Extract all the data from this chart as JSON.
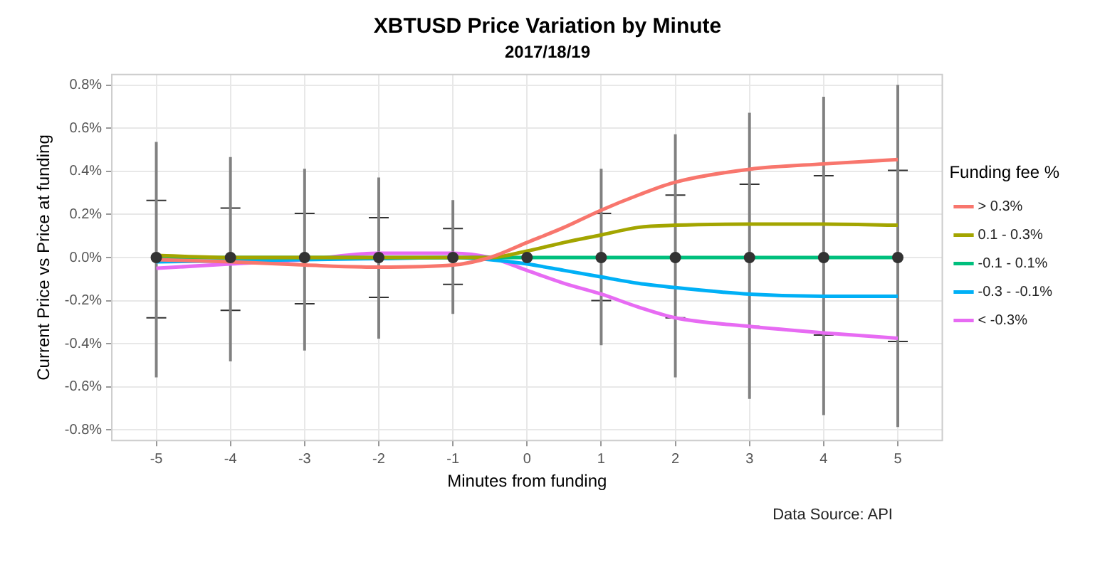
{
  "chart_data": {
    "type": "line",
    "title": "XBTUSD Price Variation by Minute",
    "subtitle": "2017/18/19",
    "xlabel": "Minutes from funding",
    "ylabel": "Current Price vs Price at funding",
    "legend_title": "Funding fee %",
    "annotations": [
      "Data Source: API"
    ],
    "x": [
      -5,
      -4,
      -3,
      -2,
      -1,
      -0.5,
      0,
      0.5,
      1,
      1.5,
      2,
      3,
      4,
      5
    ],
    "series": [
      {
        "name": "> 0.3%",
        "color": "#f8766d",
        "values": [
          -0.01,
          -0.02,
          -0.035,
          -0.045,
          -0.035,
          0.0,
          0.07,
          0.14,
          0.22,
          0.29,
          0.35,
          0.41,
          0.435,
          0.455
        ]
      },
      {
        "name": "0.1 - 0.3%",
        "color": "#a3a500",
        "values": [
          0.01,
          0.0,
          0.0,
          0.0,
          0.0,
          0.0,
          0.03,
          0.07,
          0.105,
          0.14,
          0.15,
          0.155,
          0.155,
          0.15
        ]
      },
      {
        "name": "-0.1 - 0.1%",
        "color": "#00bf7d",
        "values": [
          0,
          0,
          0,
          0,
          0,
          0,
          0,
          0,
          0,
          0,
          0,
          0,
          0,
          0
        ]
      },
      {
        "name": "-0.3 - -0.1%",
        "color": "#00b0f6",
        "values": [
          -0.02,
          -0.015,
          -0.01,
          -0.005,
          0.0,
          -0.01,
          -0.03,
          -0.06,
          -0.09,
          -0.12,
          -0.14,
          -0.17,
          -0.18,
          -0.18
        ]
      },
      {
        "name": "< -0.3%",
        "color": "#e76bf3",
        "values": [
          -0.05,
          -0.03,
          -0.01,
          0.02,
          0.02,
          0.0,
          -0.06,
          -0.12,
          -0.17,
          -0.23,
          -0.28,
          -0.32,
          -0.35,
          -0.375
        ]
      },
      {
        "type": "scatter",
        "color": "#333333",
        "marker": "circle",
        "x": [
          -5,
          -4,
          -3,
          -2,
          -1,
          0,
          1,
          2,
          3,
          4,
          5
        ],
        "values": [
          0,
          0,
          0,
          0,
          0,
          0,
          0,
          0,
          0,
          0,
          0
        ],
        "errors": [
          [
            -0.28,
            0.265
          ],
          [
            -0.245,
            0.23
          ],
          [
            -0.215,
            0.205
          ],
          [
            -0.185,
            0.185
          ],
          [
            -0.125,
            0.135
          ],
          null,
          [
            -0.2,
            0.205
          ],
          [
            -0.28,
            0.29
          ],
          [
            -0.32,
            0.34
          ],
          [
            -0.36,
            0.38
          ],
          [
            -0.39,
            0.405
          ]
        ]
      },
      {
        "type": "bar",
        "color": "#808080",
        "x": [
          -5,
          -4,
          -3,
          -2,
          -1,
          1,
          2,
          3,
          4,
          5
        ],
        "base": [
          -0.555,
          -0.48,
          -0.43,
          -0.375,
          -0.26,
          -0.405,
          -0.555,
          -0.655,
          -0.73,
          -0.785
        ],
        "values": [
          1.09,
          0.945,
          0.84,
          0.745,
          0.525,
          0.815,
          1.125,
          1.325,
          1.475,
          1.585
        ]
      }
    ],
    "xlim": [
      -5.6,
      5.6
    ],
    "xticks": [
      -5,
      -4,
      -3,
      -2,
      -1,
      0,
      1,
      2,
      3,
      4,
      5
    ],
    "ylim": [
      -0.85,
      0.85
    ],
    "yticks": [
      {
        "value": -0.8,
        "label": "-0.8%"
      },
      {
        "value": -0.6,
        "label": "-0.6%"
      },
      {
        "value": -0.4,
        "label": "-0.4%"
      },
      {
        "value": -0.2,
        "label": "-0.2%"
      },
      {
        "value": 0,
        "label": "0.0%"
      },
      {
        "value": 0.2,
        "label": "0.2%"
      },
      {
        "value": 0.4,
        "label": "0.4%"
      },
      {
        "value": 0.6,
        "label": "0.6%"
      },
      {
        "value": 0.8,
        "label": "0.8%"
      }
    ],
    "grid": true,
    "legend": "right",
    "line_style": "solid"
  }
}
